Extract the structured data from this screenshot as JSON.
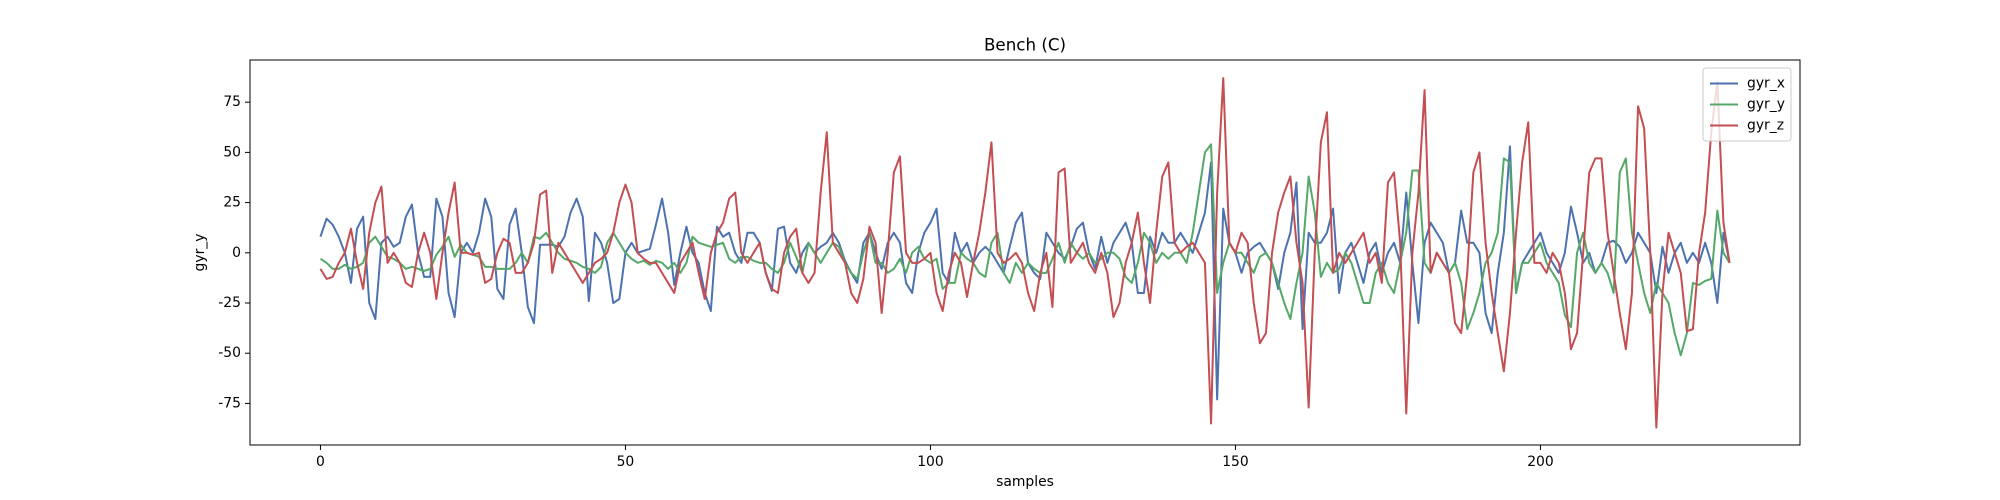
{
  "chart_data": {
    "type": "line",
    "title": "Bench (C)",
    "x_label": "samples",
    "y_label": "gyr_y",
    "xlim": [
      -11.55,
      242.55
    ],
    "xticks": [
      0,
      50,
      100,
      150,
      200
    ],
    "ylim": [
      -95.7,
      96
    ],
    "yticks": [
      -75,
      -50,
      -25,
      0,
      25,
      50,
      75
    ],
    "legend": "upper right",
    "grid": false,
    "series": [
      {
        "name": "gyr_x",
        "color": "#4c72b0",
        "values": [
          8,
          17,
          14,
          8,
          0,
          -15,
          12,
          18,
          -25,
          -33,
          5,
          8,
          3,
          5,
          18,
          24,
          0,
          -12,
          -12,
          27,
          18,
          -20,
          -32,
          0,
          5,
          0,
          10,
          27,
          18,
          -18,
          -23,
          14,
          22,
          0,
          -27,
          -35,
          4,
          4,
          4,
          3,
          8,
          20,
          27,
          18,
          -24,
          10,
          5,
          -5,
          -25,
          -23,
          0,
          5,
          0,
          1,
          2,
          14,
          27,
          10,
          -16,
          0,
          13,
          0,
          -5,
          -20,
          -29,
          13,
          8,
          10,
          0,
          -5,
          10,
          10,
          5,
          -10,
          -19,
          12,
          13,
          -5,
          -10,
          0,
          5,
          0,
          3,
          5,
          10,
          5,
          -4,
          -10,
          -15,
          5,
          10,
          0,
          -8,
          5,
          10,
          5,
          -15,
          -20,
          0,
          10,
          15,
          22,
          -10,
          -15,
          10,
          0,
          5,
          -5,
          0,
          3,
          0,
          -5,
          -10,
          3,
          15,
          20,
          -5,
          -10,
          -13,
          10,
          5,
          0,
          -3,
          3,
          12,
          15,
          0,
          -8,
          8,
          -5,
          5,
          10,
          15,
          5,
          -20,
          -20,
          8,
          0,
          10,
          5,
          5,
          10,
          5,
          0,
          10,
          20,
          45,
          -73,
          22,
          5,
          0,
          -10,
          0,
          3,
          5,
          0,
          -5,
          -18,
          0,
          10,
          35,
          -38,
          10,
          5,
          5,
          10,
          22,
          -20,
          0,
          5,
          -5,
          -15,
          0,
          5,
          -10,
          0,
          5,
          -5,
          30,
          -5,
          -35,
          5,
          15,
          10,
          5,
          -10,
          -5,
          21,
          5,
          5,
          0,
          -30,
          -40,
          -10,
          10,
          53,
          -20,
          -5,
          0,
          5,
          10,
          0,
          -5,
          -10,
          0,
          23,
          10,
          -5,
          0,
          -10,
          -5,
          5,
          6,
          3,
          -5,
          0,
          10,
          5,
          0,
          -20,
          3,
          -10,
          0,
          5,
          -5,
          0,
          -5,
          5,
          -5,
          -25,
          10,
          -5
        ]
      },
      {
        "name": "gyr_y",
        "color": "#55a868",
        "values": [
          -3,
          -5,
          -8,
          -8,
          -6,
          -8,
          -7,
          -5,
          5,
          8,
          3,
          -2,
          -3,
          -5,
          -8,
          -7,
          -8,
          -9,
          -8,
          -1,
          3,
          8,
          -2,
          4,
          0,
          -1,
          -2,
          -7,
          -7,
          -8,
          -8,
          -8,
          -5,
          0,
          -5,
          8,
          7,
          10,
          5,
          0,
          -3,
          -4,
          -5,
          -7,
          -8,
          -10,
          -7,
          5,
          10,
          5,
          0,
          -3,
          -5,
          -4,
          -6,
          -4,
          -5,
          -8,
          -5,
          -10,
          -5,
          8,
          5,
          4,
          3,
          4,
          5,
          -3,
          -5,
          -2,
          -2,
          -4,
          -5,
          -5,
          -8,
          -10,
          -5,
          5,
          -2,
          -10,
          5,
          0,
          -5,
          0,
          5,
          3,
          -5,
          -10,
          -13,
          0,
          10,
          -5,
          -5,
          -10,
          -8,
          -3,
          -10,
          0,
          3,
          -3,
          -5,
          -3,
          -18,
          -15,
          -15,
          0,
          -3,
          -5,
          -10,
          -12,
          5,
          10,
          -10,
          -15,
          -5,
          -10,
          -5,
          -8,
          -10,
          -10,
          -3,
          5,
          -5,
          5,
          0,
          -3,
          0,
          -5,
          -3,
          0,
          0,
          -3,
          -12,
          -15,
          -5,
          10,
          5,
          -5,
          0,
          -3,
          0,
          0,
          -5,
          10,
          30,
          50,
          54,
          -20,
          -5,
          5,
          0,
          0,
          -5,
          -10,
          -2,
          0,
          -5,
          -15,
          -25,
          -33,
          -15,
          0,
          38,
          20,
          -12,
          -5,
          -10,
          -8,
          0,
          -5,
          -15,
          -25,
          -25,
          -10,
          -5,
          -15,
          -20,
          -5,
          10,
          41,
          41,
          -5,
          -10,
          0,
          -5,
          -10,
          -5,
          -15,
          -38,
          -30,
          -20,
          -5,
          0,
          10,
          47,
          45,
          -20,
          -5,
          -5,
          0,
          5,
          -5,
          -10,
          -15,
          -31,
          -37,
          0,
          10,
          -5,
          -10,
          -5,
          -10,
          -20,
          40,
          47,
          10,
          -5,
          -20,
          -30,
          -15,
          -20,
          -25,
          -40,
          -51,
          -40,
          -15,
          -16,
          -14,
          -13,
          21,
          0,
          -5
        ]
      },
      {
        "name": "gyr_z",
        "color": "#c44e52",
        "values": [
          -8,
          -13,
          -12,
          -5,
          0,
          12,
          -5,
          -18,
          10,
          25,
          33,
          -5,
          0,
          -5,
          -15,
          -17,
          0,
          10,
          0,
          -23,
          0,
          20,
          35,
          0,
          0,
          -1,
          0,
          -15,
          -13,
          0,
          7,
          5,
          -10,
          -10,
          -5,
          5,
          29,
          31,
          -10,
          5,
          0,
          -5,
          -10,
          -15,
          -10,
          -5,
          -3,
          0,
          10,
          25,
          34,
          25,
          0,
          -3,
          -5,
          -5,
          -10,
          -15,
          -20,
          -5,
          0,
          5,
          -10,
          -23,
          0,
          10,
          15,
          27,
          30,
          0,
          -5,
          0,
          5,
          -10,
          -18,
          -20,
          0,
          8,
          12,
          -10,
          -15,
          -10,
          30,
          60,
          5,
          0,
          -5,
          -20,
          -25,
          -13,
          13,
          5,
          -30,
          0,
          40,
          48,
          0,
          -5,
          -5,
          -3,
          0,
          -20,
          -29,
          -10,
          0,
          -5,
          -22,
          -5,
          10,
          30,
          55,
          0,
          -5,
          -3,
          0,
          -5,
          -20,
          -29,
          -10,
          0,
          -27,
          40,
          42,
          -5,
          0,
          5,
          -5,
          -10,
          0,
          -10,
          -32,
          -25,
          -5,
          5,
          20,
          -5,
          -25,
          10,
          38,
          45,
          5,
          0,
          3,
          5,
          0,
          -5,
          -85,
          30,
          87,
          5,
          0,
          10,
          5,
          -25,
          -45,
          -40,
          0,
          20,
          30,
          38,
          5,
          -15,
          -77,
          0,
          55,
          70,
          -10,
          0,
          -5,
          0,
          5,
          10,
          -5,
          0,
          -15,
          35,
          40,
          5,
          -80,
          0,
          30,
          81,
          -10,
          0,
          -5,
          -10,
          -35,
          -40,
          -10,
          40,
          50,
          5,
          -20,
          -40,
          -59,
          -30,
          10,
          45,
          65,
          -5,
          -5,
          -10,
          0,
          -5,
          -20,
          -48,
          -40,
          0,
          40,
          47,
          47,
          10,
          -10,
          -30,
          -48,
          -20,
          73,
          62,
          0,
          -87,
          -20,
          10,
          0,
          -10,
          -39,
          -38,
          0,
          20,
          60,
          85,
          15,
          -5
        ]
      }
    ]
  }
}
